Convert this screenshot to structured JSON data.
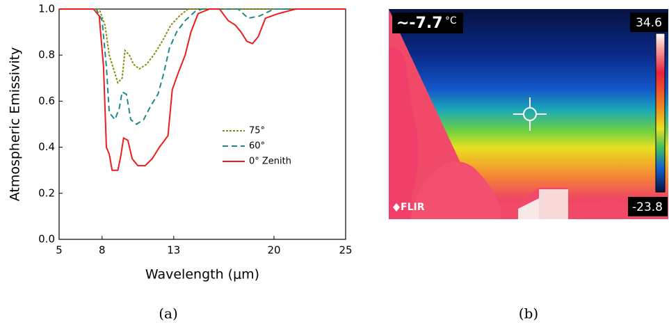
{
  "chart_data": {
    "type": "line",
    "xlabel": "Wavelength (μm)",
    "ylabel": "Atmospheric Emissivity",
    "xlim": [
      5,
      25
    ],
    "xticks": [
      5,
      8,
      13,
      20,
      25
    ],
    "ylim": [
      0,
      1
    ],
    "yticks": [
      {
        "value": 0,
        "label": "0.0"
      },
      {
        "value": 0.2,
        "label": "0.2"
      },
      {
        "value": 0.4,
        "label": "0.4"
      },
      {
        "value": 0.6,
        "label": "0.6"
      },
      {
        "value": 0.8,
        "label": "0.8"
      },
      {
        "value": 1,
        "label": "1.0"
      }
    ],
    "series": [
      {
        "name": "75°",
        "color": "#8a8a10",
        "dash": "3,2",
        "x": [
          5,
          7.8,
          8.2,
          8.5,
          8.8,
          9.1,
          9.4,
          9.6,
          9.9,
          10.2,
          10.6,
          11.1,
          11.6,
          12.2,
          12.8,
          13.4,
          14,
          25
        ],
        "values": [
          1,
          1,
          0.93,
          0.8,
          0.74,
          0.68,
          0.7,
          0.82,
          0.8,
          0.76,
          0.74,
          0.76,
          0.8,
          0.86,
          0.93,
          0.97,
          1,
          1
        ]
      },
      {
        "name": "60°",
        "color": "#1a8a8a",
        "dash": "8,5",
        "x": [
          5,
          7.6,
          8.0,
          8.3,
          8.5,
          8.9,
          9.2,
          9.4,
          9.7,
          10,
          10.4,
          10.9,
          11.4,
          11.9,
          12.3,
          12.7,
          13.2,
          13.8,
          14.5,
          15,
          17.5,
          18.2,
          19,
          20,
          25
        ],
        "values": [
          1,
          1,
          0.95,
          0.75,
          0.55,
          0.52,
          0.57,
          0.64,
          0.63,
          0.52,
          0.5,
          0.52,
          0.58,
          0.63,
          0.72,
          0.83,
          0.9,
          0.95,
          0.99,
          1,
          1,
          0.96,
          0.97,
          1,
          1
        ]
      },
      {
        "name": "0° Zenith",
        "color": "#ee1c1c",
        "dash": "",
        "x": [
          5,
          7.4,
          7.8,
          8.1,
          8.3,
          8.5,
          8.7,
          9.1,
          9.3,
          9.5,
          9.8,
          10.1,
          10.5,
          11,
          11.5,
          12,
          12.6,
          12.9,
          13.3,
          13.8,
          14.2,
          14.7,
          15.5,
          16.2,
          16.8,
          17.3,
          17.7,
          18.1,
          18.5,
          18.9,
          19.4,
          20.3,
          21.5,
          25
        ],
        "values": [
          1,
          1,
          0.97,
          0.75,
          0.4,
          0.37,
          0.3,
          0.3,
          0.36,
          0.44,
          0.43,
          0.35,
          0.32,
          0.32,
          0.35,
          0.4,
          0.45,
          0.65,
          0.72,
          0.8,
          0.9,
          0.98,
          1,
          1,
          0.95,
          0.93,
          0.9,
          0.86,
          0.85,
          0.88,
          0.96,
          0.98,
          1,
          1
        ]
      }
    ]
  },
  "caption_a": "(a)",
  "thermal_image": {
    "reading": "~-7.7",
    "unit": "°C",
    "scale_max": "34.6",
    "scale_min": "-23.8",
    "brand": "FLIR",
    "caption": "(b)"
  }
}
